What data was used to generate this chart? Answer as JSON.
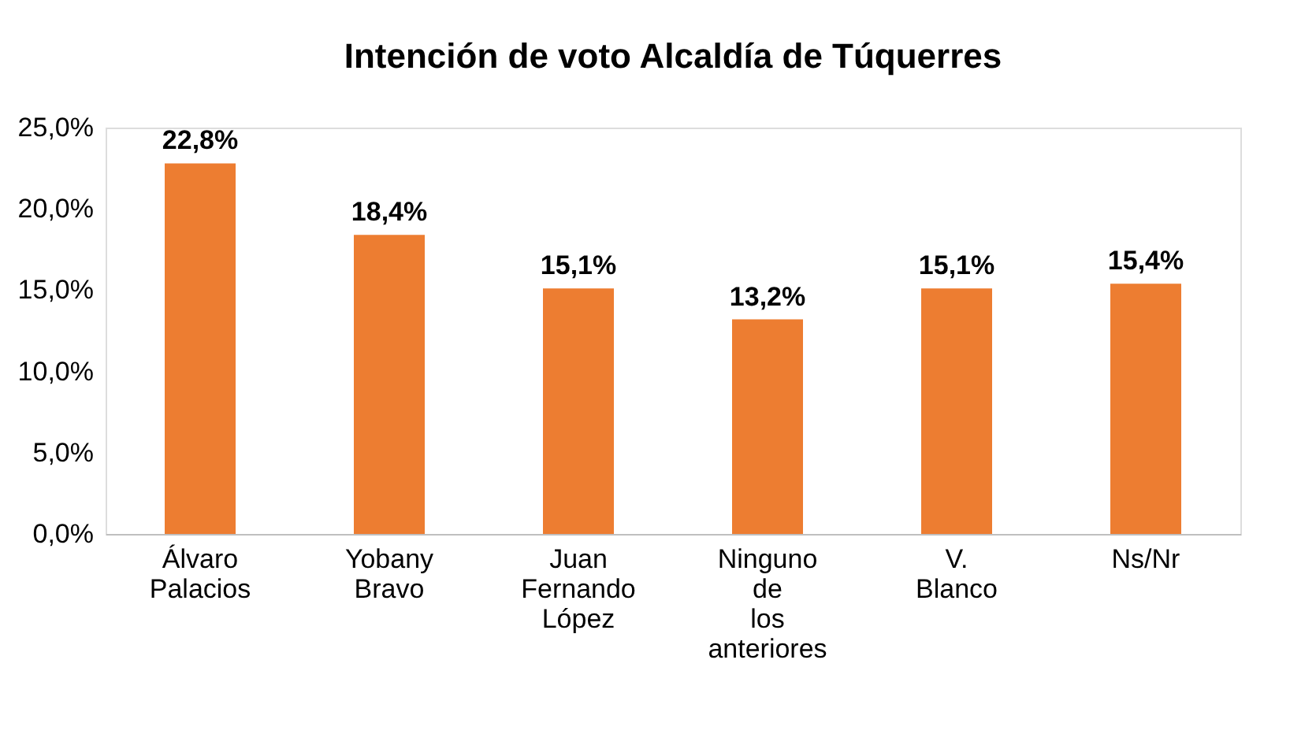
{
  "chart_data": {
    "type": "bar",
    "title": "Intención de voto Alcaldía de Túquerres",
    "categories": [
      "Álvaro Palacios",
      "Yobany Bravo",
      "Juan Fernando López",
      "Ninguno de los anteriores",
      "V. Blanco",
      "Ns/Nr"
    ],
    "values": [
      22.8,
      18.4,
      15.1,
      13.2,
      15.1,
      15.4
    ],
    "value_labels": [
      "22,8%",
      "18,4%",
      "15,1%",
      "13,2%",
      "15,1%",
      "15,4%"
    ],
    "color": "#ed7d31",
    "ylim": [
      0,
      25
    ],
    "yticks": [
      {
        "value": 0,
        "label": "0,0%"
      },
      {
        "value": 5,
        "label": "5,0%"
      },
      {
        "value": 10,
        "label": "10,0%"
      },
      {
        "value": 15,
        "label": "15,0%"
      },
      {
        "value": 20,
        "label": "20,0%"
      },
      {
        "value": 25,
        "label": "25,0%"
      }
    ],
    "grid": false
  }
}
